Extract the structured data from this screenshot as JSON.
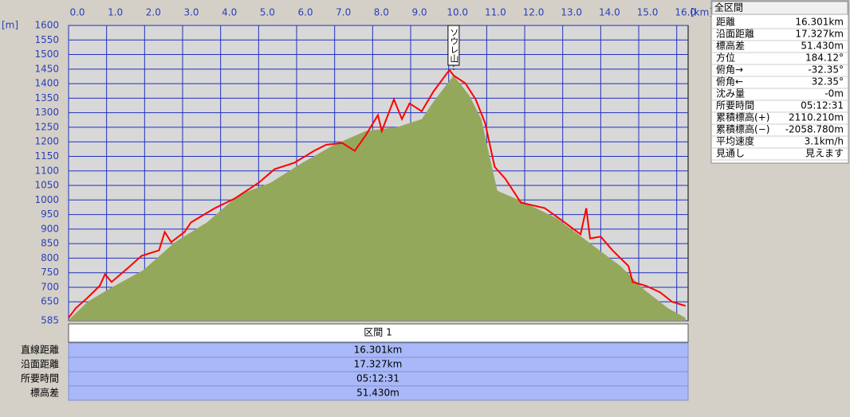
{
  "chart_data": {
    "type": "area-line",
    "x_label": "[km]",
    "y_label": "[m]",
    "xlim": [
      0,
      16.3
    ],
    "ylim": [
      585,
      1600
    ],
    "xticks": [
      {
        "value": 0,
        "label": "0.0"
      },
      {
        "value": 1,
        "label": "1.0"
      },
      {
        "value": 2,
        "label": "2.0"
      },
      {
        "value": 3,
        "label": "3.0"
      },
      {
        "value": 4,
        "label": "4.0"
      },
      {
        "value": 5,
        "label": "5.0"
      },
      {
        "value": 6,
        "label": "6.0"
      },
      {
        "value": 7,
        "label": "7.0"
      },
      {
        "value": 8,
        "label": "8.0"
      },
      {
        "value": 9,
        "label": "9.0"
      },
      {
        "value": 10,
        "label": "10.0"
      },
      {
        "value": 11,
        "label": "11.0"
      },
      {
        "value": 12,
        "label": "12.0"
      },
      {
        "value": 13,
        "label": "13.0"
      },
      {
        "value": 14,
        "label": "14.0"
      },
      {
        "value": 15,
        "label": "15.0"
      },
      {
        "value": 16,
        "label": "16.0"
      }
    ],
    "yticks": [
      1600,
      1550,
      1500,
      1450,
      1400,
      1350,
      1300,
      1250,
      1200,
      1150,
      1100,
      1050,
      1000,
      950,
      900,
      850,
      800,
      750,
      700,
      650,
      585
    ],
    "grid": true,
    "series": [
      {
        "color": "#94a85c",
        "fill": true,
        "x": [
          0,
          0.5,
          1.13,
          1.97,
          2.8,
          3.64,
          4.48,
          5.31,
          6.15,
          6.99,
          7.82,
          8.66,
          9.29,
          9.6,
          10.13,
          10.54,
          10.86,
          11.28,
          12.0,
          12.85,
          13.68,
          14.52,
          15.15,
          15.77,
          16.23
        ],
        "values": [
          587,
          650,
          699,
          759,
          855,
          923,
          1018,
          1059,
          1128,
          1190,
          1237,
          1251,
          1278,
          1338,
          1428,
          1360,
          1278,
          1032,
          991,
          937,
          855,
          773,
          691,
          628,
          595
        ]
      },
      {
        "color": "#ff0000",
        "fill": false,
        "x": [
          0,
          0.19,
          0.5,
          0.82,
          0.96,
          1.13,
          1.55,
          1.92,
          2.38,
          2.53,
          2.7,
          3.05,
          3.22,
          3.85,
          4.37,
          5.0,
          5.42,
          5.94,
          6.46,
          6.78,
          7.2,
          7.53,
          7.82,
          8.14,
          8.24,
          8.56,
          8.77,
          8.97,
          9.29,
          9.6,
          10.02,
          10.13,
          10.44,
          10.71,
          10.96,
          11.21,
          11.49,
          11.9,
          12.53,
          13.05,
          13.47,
          13.62,
          13.72,
          14.0,
          14.31,
          14.73,
          14.84,
          15.19,
          15.56,
          15.88,
          16.23
        ],
        "values": [
          595,
          628,
          664,
          705,
          745,
          718,
          765,
          808,
          827,
          890,
          855,
          890,
          923,
          972,
          1005,
          1059,
          1106,
          1128,
          1169,
          1190,
          1196,
          1169,
          1223,
          1292,
          1237,
          1346,
          1278,
          1332,
          1305,
          1373,
          1447,
          1428,
          1401,
          1346,
          1264,
          1114,
          1073,
          991,
          972,
          923,
          882,
          972,
          868,
          874,
          827,
          773,
          718,
          705,
          683,
          650,
          636
        ]
      }
    ],
    "annotation": {
      "text": "ソウレ山",
      "x": 10.13
    }
  },
  "summary_panel": {
    "title": "全区間",
    "rows": [
      [
        "距離",
        "16.301km"
      ],
      [
        "沿面距離",
        "17.327km"
      ],
      [
        "標高差",
        "51.430m"
      ],
      [
        "方位",
        "184.12°"
      ],
      [
        "俯角→",
        "-32.35°"
      ],
      [
        "俯角←",
        "32.35°"
      ],
      [
        "沈み量",
        "-0m"
      ],
      [
        "所要時間",
        "05:12:31"
      ],
      [
        "累積標高(+)",
        "2110.210m"
      ],
      [
        "累積標高(−)",
        "-2058.780m"
      ],
      [
        "平均速度",
        "3.1km/h"
      ],
      [
        "見通し",
        "見えます"
      ]
    ]
  },
  "section_table": {
    "header": "区間 1",
    "rows": [
      [
        "直線距離",
        "16.301km"
      ],
      [
        "沿面距離",
        "17.327km"
      ],
      [
        "所要時間",
        "05:12:31"
      ],
      [
        "標高差",
        "51.430m"
      ]
    ]
  }
}
